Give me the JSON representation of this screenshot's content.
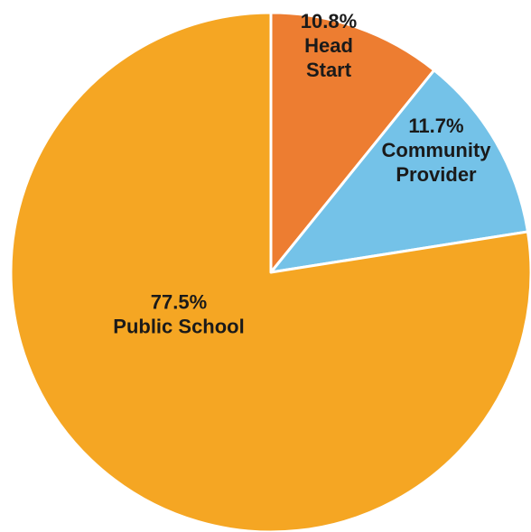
{
  "chart_data": {
    "type": "pie",
    "title": "",
    "start_angle_deg": 0,
    "direction": "clockwise",
    "slices": [
      {
        "label": "Head Start",
        "label_lines": [
          "10.8%",
          "Head",
          "Start"
        ],
        "value": 10.8,
        "color": "#ED7D31"
      },
      {
        "label": "Community Provider",
        "label_lines": [
          "11.7%",
          "Community",
          "Provider"
        ],
        "value": 11.7,
        "color": "#74C2E8"
      },
      {
        "label": "Public School",
        "label_lines": [
          "77.5%",
          "Public School"
        ],
        "value": 77.5,
        "color": "#F5A623"
      }
    ],
    "legend": "none"
  }
}
